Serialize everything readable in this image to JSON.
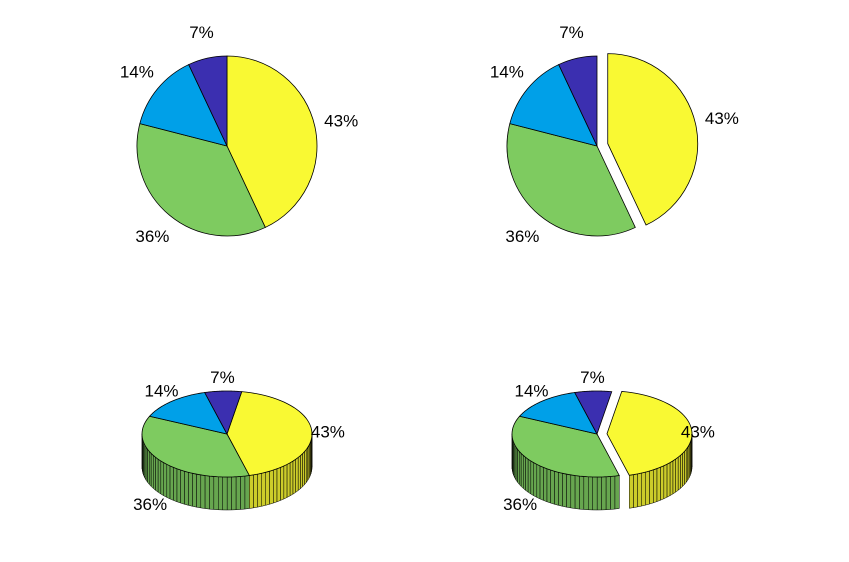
{
  "chart_data": [
    {
      "type": "pie",
      "style": "2d",
      "exploded": [
        false,
        false,
        false,
        false
      ],
      "values": [
        43,
        36,
        14,
        7
      ],
      "labels": [
        "43%",
        "36%",
        "14%",
        "7%"
      ],
      "colors": [
        "#f9f933",
        "#7ecb60",
        "#00a0e8",
        "#3b2fb0"
      ]
    },
    {
      "type": "pie",
      "style": "2d",
      "exploded": [
        true,
        false,
        false,
        false
      ],
      "values": [
        43,
        36,
        14,
        7
      ],
      "labels": [
        "43%",
        "36%",
        "14%",
        "7%"
      ],
      "colors": [
        "#f9f933",
        "#7ecb60",
        "#00a0e8",
        "#3b2fb0"
      ]
    },
    {
      "type": "pie",
      "style": "3d",
      "exploded": [
        false,
        false,
        false,
        false
      ],
      "values": [
        43,
        36,
        14,
        7
      ],
      "labels": [
        "43%",
        "36%",
        "14%",
        "7%"
      ],
      "colors": [
        "#f9f933",
        "#7ecb60",
        "#00a0e8",
        "#3b2fb0"
      ]
    },
    {
      "type": "pie",
      "style": "3d",
      "exploded": [
        true,
        false,
        false,
        false
      ],
      "values": [
        43,
        36,
        14,
        7
      ],
      "labels": [
        "43%",
        "36%",
        "14%",
        "7%"
      ],
      "colors": [
        "#f9f933",
        "#7ecb60",
        "#00a0e8",
        "#3b2fb0"
      ]
    }
  ]
}
